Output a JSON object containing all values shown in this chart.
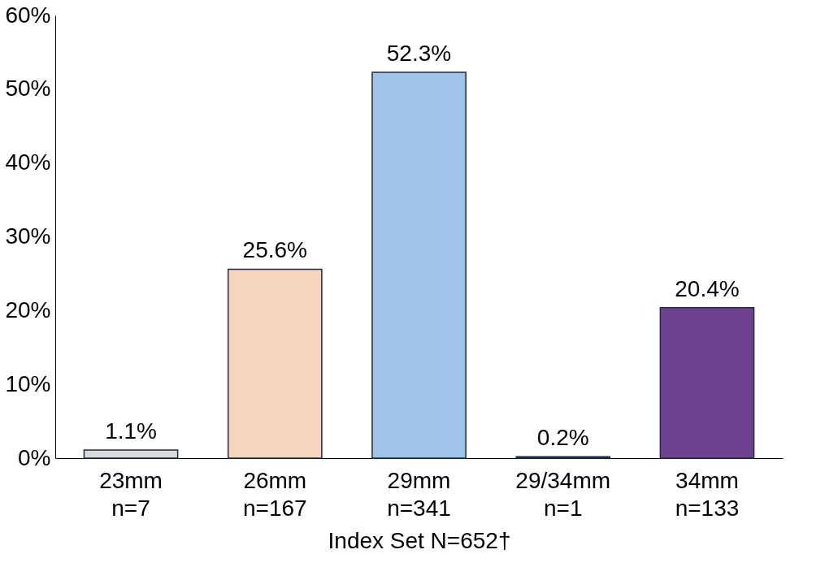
{
  "chart_data": {
    "type": "bar",
    "xlabel": "Index Set N=652†",
    "categories": [
      "23mm\nn=7",
      "26mm\nn=167",
      "29mm\nn=341",
      "29/34mm\nn=1",
      "34mm\nn=133"
    ],
    "values": [
      1.1,
      25.6,
      52.3,
      0.2,
      20.4
    ],
    "colors": [
      "#d9d9d9",
      "#f5d5bd",
      "#9fc4e7",
      "#1f2a44",
      "#6f428f"
    ],
    "value_labels": [
      "1.1%",
      "25.6%",
      "52.3%",
      "0.2%",
      "20.4%"
    ],
    "ylim": [
      0,
      60
    ],
    "yticks": [
      {
        "value": 0,
        "label": "0%"
      },
      {
        "value": 10,
        "label": "10%"
      },
      {
        "value": 20,
        "label": "20%"
      },
      {
        "value": 30,
        "label": "30%"
      },
      {
        "value": 40,
        "label": "40%"
      },
      {
        "value": 50,
        "label": "50%"
      },
      {
        "value": 60,
        "label": "60%"
      }
    ],
    "grid": false
  }
}
